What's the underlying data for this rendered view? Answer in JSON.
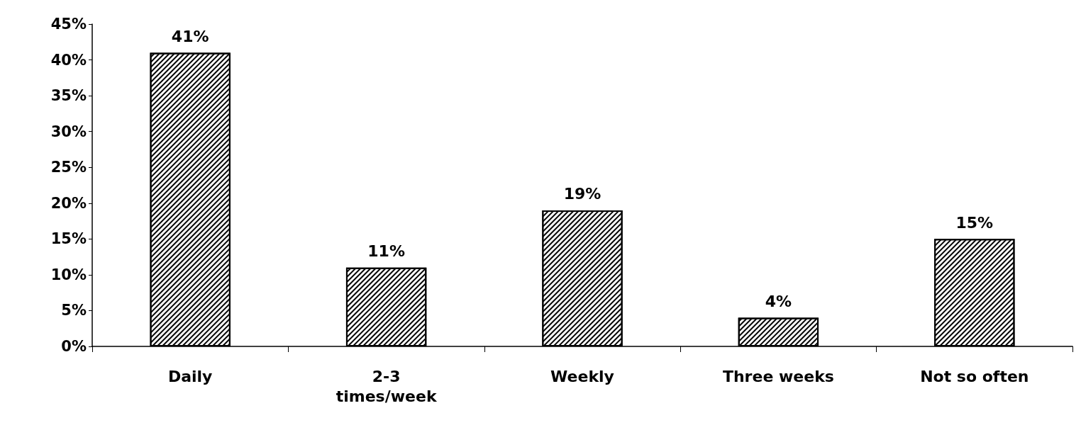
{
  "chart_data": {
    "type": "bar",
    "categories": [
      "Daily",
      "2-3\ntimes/week",
      "Weekly",
      "Three weeks",
      "Not so often"
    ],
    "values": [
      41,
      11,
      19,
      4,
      15
    ],
    "value_labels": [
      "41%",
      "11%",
      "19%",
      "4%",
      "15%"
    ],
    "color": "#000000",
    "ylim": [
      0,
      45
    ],
    "yticks": [
      {
        "value": 0,
        "label": "0%"
      },
      {
        "value": 5,
        "label": "5%"
      },
      {
        "value": 10,
        "label": "10%"
      },
      {
        "value": 15,
        "label": "15%"
      },
      {
        "value": 20,
        "label": "20%"
      },
      {
        "value": 25,
        "label": "25%"
      },
      {
        "value": 30,
        "label": "30%"
      },
      {
        "value": 35,
        "label": "35%"
      },
      {
        "value": 40,
        "label": "40%"
      },
      {
        "value": 45,
        "label": "45%"
      }
    ],
    "grid": false
  }
}
